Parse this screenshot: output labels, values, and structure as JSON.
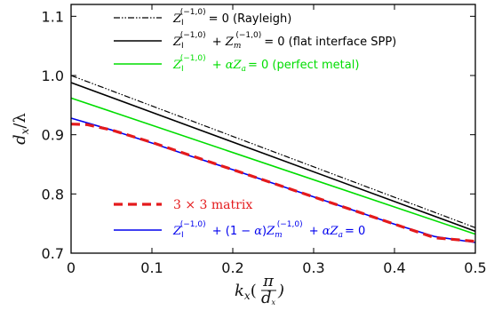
{
  "chart_data": {
    "type": "line",
    "title": "",
    "xlabel": "k_x(π/d_x)",
    "ylabel": "d_x/λ",
    "xlim": [
      0,
      0.5
    ],
    "ylim": [
      0.7,
      1.12
    ],
    "grid": false,
    "legend_placement": "top-right and bottom-right (two groups)",
    "x_ticks": [
      "0",
      "0.1",
      "0.2",
      "0.3",
      "0.4",
      "0.5"
    ],
    "y_ticks": [
      "0.7",
      "0.8",
      "0.9",
      "1.0",
      "1.1"
    ],
    "series": [
      {
        "name": "Z_I^(−1,0) = 0 (Rayleigh)",
        "legend_text": "= 0 (Rayleigh)",
        "color": "#000000",
        "style": "dash-dot",
        "x": [
          0,
          0.5
        ],
        "y": [
          1.0,
          0.743
        ]
      },
      {
        "name": "Z_I^(−1,0) + Z_m^(−1,0) = 0 (flat interface SPP)",
        "legend_text": "= 0 (flat interface SPP)",
        "color": "#000000",
        "style": "solid",
        "x": [
          0,
          0.5
        ],
        "y": [
          0.988,
          0.737
        ]
      },
      {
        "name": "Z_I^(−1,0) + αZ_a = 0 (perfect metal)",
        "legend_text": "= 0 (perfect metal)",
        "color": "#00dd00",
        "style": "solid",
        "x": [
          0,
          0.5
        ],
        "y": [
          0.962,
          0.732
        ]
      },
      {
        "name": "3 × 3 matrix",
        "legend_text": "3 × 3 matrix",
        "color": "#e41a1c",
        "style": "dashed",
        "x": [
          0,
          0.02,
          0.05,
          0.1,
          0.15,
          0.2,
          0.25,
          0.3,
          0.35,
          0.4,
          0.45,
          0.5
        ],
        "y": [
          0.918,
          0.917,
          0.908,
          0.887,
          0.864,
          0.841,
          0.818,
          0.795,
          0.772,
          0.749,
          0.726,
          0.72
        ]
      },
      {
        "name": "Z_I^(−1,0) + (1 − α)Z_m^(−1,0) + αZ_a = 0",
        "legend_text": "= 0",
        "color": "#0000ee",
        "style": "solid",
        "x": [
          0,
          0.05,
          0.1,
          0.15,
          0.2,
          0.25,
          0.3,
          0.35,
          0.4,
          0.45,
          0.5
        ],
        "y": [
          0.928,
          0.908,
          0.886,
          0.863,
          0.841,
          0.818,
          0.795,
          0.772,
          0.749,
          0.728,
          0.718
        ]
      }
    ]
  }
}
